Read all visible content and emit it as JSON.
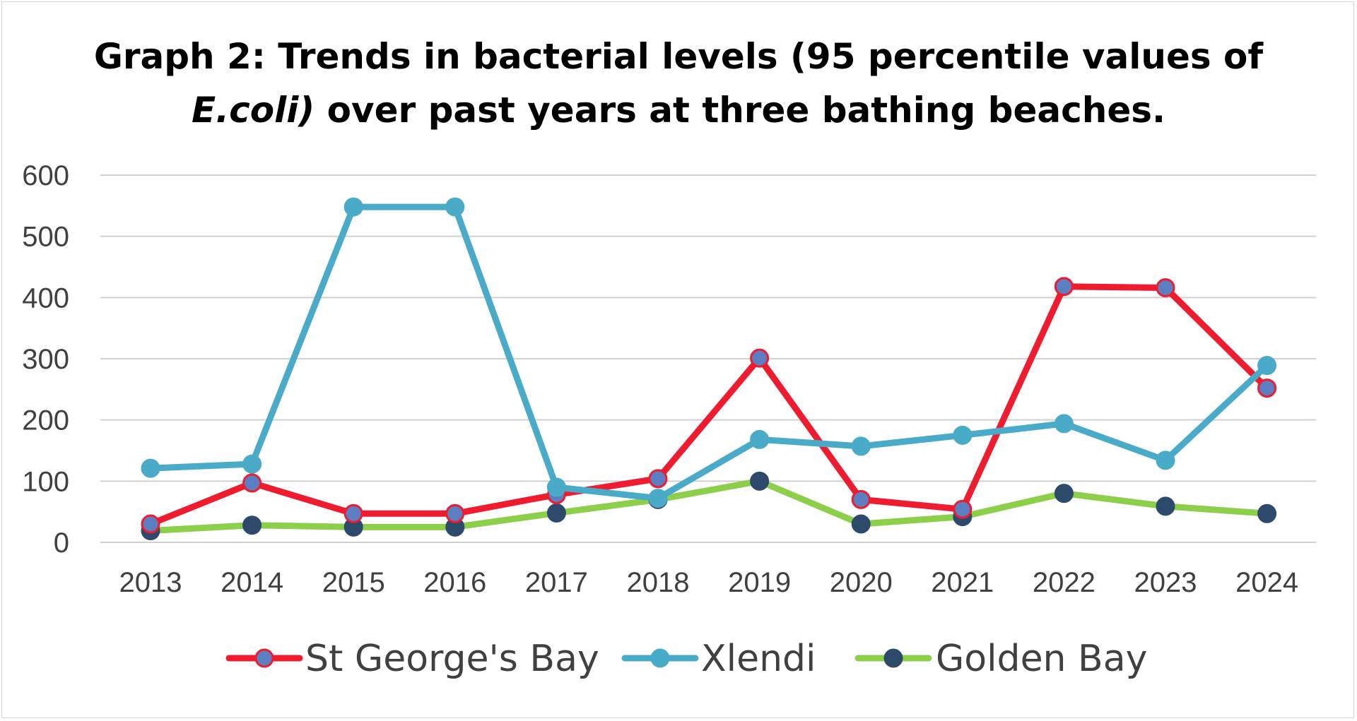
{
  "chart_data": {
    "type": "line",
    "title_line1": "Graph 2: Trends in bacterial levels (95 percentile values of",
    "title_line2_italic": "E.coli)",
    "title_line2_rest": " over past years at three bathing beaches.",
    "xlabel": "",
    "ylabel": "",
    "categories": [
      "2013",
      "2014",
      "2015",
      "2016",
      "2017",
      "2018",
      "2019",
      "2020",
      "2021",
      "2022",
      "2023",
      "2024"
    ],
    "ylim": [
      0,
      600
    ],
    "yticks": [
      0,
      100,
      200,
      300,
      400,
      500,
      600
    ],
    "grid": true,
    "legend_position": "bottom",
    "series": [
      {
        "name": "St George's Bay",
        "values": [
          30,
          97,
          47,
          47,
          78,
          104,
          301,
          70,
          54,
          418,
          416,
          252
        ],
        "line_color": "#ee1c2e",
        "marker_fill": "#5b7fc1",
        "marker_stroke": "#ee1c2e"
      },
      {
        "name": "Xlendi",
        "values": [
          121,
          128,
          548,
          548,
          90,
          72,
          168,
          157,
          175,
          194,
          134,
          289
        ],
        "line_color": "#4aabc8",
        "marker_fill": "#4aabc8",
        "marker_stroke": "#4aabc8"
      },
      {
        "name": "Golden Bay",
        "values": [
          19,
          28,
          25,
          25,
          48,
          70,
          100,
          30,
          42,
          80,
          59,
          47
        ],
        "line_color": "#8dcf4a",
        "marker_fill": "#2e4a6b",
        "marker_stroke": "#2e4a6b"
      }
    ],
    "gridline_color": "#d0d0d0",
    "tick_label_color": "#404040"
  }
}
